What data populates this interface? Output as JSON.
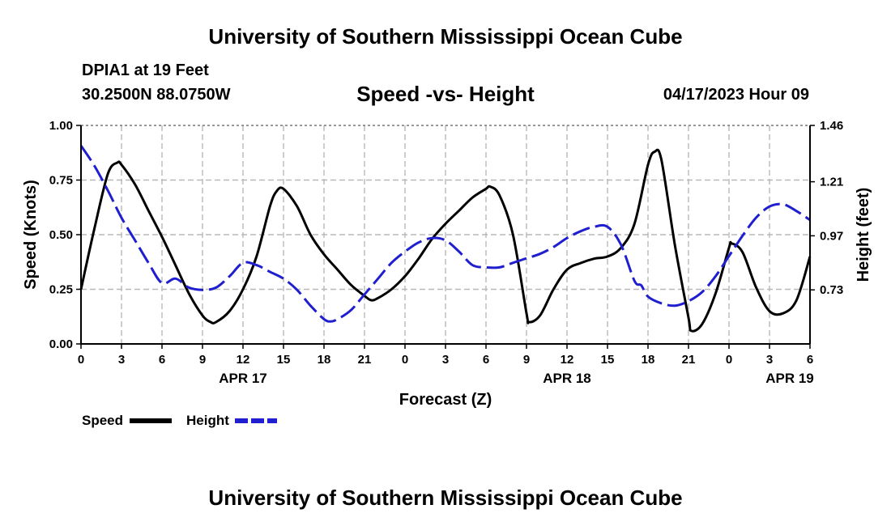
{
  "header": {
    "title": "University of Southern Mississippi Ocean Cube",
    "station": "DPIA1 at 19 Feet",
    "coordinates": "30.2500N  88.0750W",
    "datetime": "04/17/2023 Hour 09"
  },
  "footer": {
    "title": "University of Southern Mississippi Ocean Cube"
  },
  "chart_data": {
    "type": "line",
    "title": "Speed -vs- Height",
    "xlabel": "Forecast (Z)",
    "ylabel": "Speed (Knots)",
    "y2label": "Height (feet)",
    "x_range": [
      0,
      54
    ],
    "x_ticks": [
      0,
      3,
      6,
      9,
      12,
      15,
      18,
      21,
      24,
      27,
      30,
      33,
      36,
      39,
      42,
      45,
      48,
      51,
      54
    ],
    "x_tick_labels": [
      "0",
      "3",
      "6",
      "9",
      "12",
      "15",
      "18",
      "21",
      "0",
      "3",
      "6",
      "9",
      "12",
      "15",
      "18",
      "21",
      "0",
      "3",
      "6"
    ],
    "date_labels": [
      {
        "x": 12,
        "label": "APR 17"
      },
      {
        "x": 36,
        "label": "APR 18"
      },
      {
        "x": 52.5,
        "label": "APR 19"
      }
    ],
    "ylim": [
      0,
      1
    ],
    "y_ticks": [
      0,
      0.25,
      0.5,
      0.75,
      1
    ],
    "y_tick_labels": [
      "0.00",
      "0.25",
      "0.50",
      "0.75",
      "1.00"
    ],
    "y2lim": [
      0.49,
      1.46
    ],
    "y2_ticks": [
      0.73,
      0.97,
      1.21,
      1.46
    ],
    "y2_tick_labels": [
      "0.73",
      "0.97",
      "1.21",
      "1.46"
    ],
    "grid": true,
    "legend_position": "bottom-left",
    "series": [
      {
        "name": "Speed",
        "axis": "left",
        "color": "#000000",
        "style": "solid",
        "x": [
          0,
          1,
          2,
          2.7,
          3,
          4,
          5,
          6,
          7,
          8,
          9,
          9.6,
          10,
          11,
          12,
          13,
          14,
          14.5,
          15,
          16,
          17,
          18,
          19,
          20,
          21,
          21.5,
          22,
          23,
          24,
          25,
          26,
          27,
          28,
          29,
          30,
          30.3,
          31,
          32,
          33,
          33.2,
          34,
          35,
          36,
          37,
          38,
          39,
          40,
          41,
          42,
          42.5,
          43,
          44,
          45,
          45.2,
          46,
          47,
          48,
          48.2,
          49,
          50,
          51,
          52,
          53,
          54
        ],
        "values": [
          0.25,
          0.53,
          0.78,
          0.83,
          0.82,
          0.73,
          0.61,
          0.49,
          0.36,
          0.23,
          0.13,
          0.1,
          0.1,
          0.15,
          0.25,
          0.4,
          0.63,
          0.7,
          0.71,
          0.63,
          0.5,
          0.41,
          0.34,
          0.27,
          0.22,
          0.2,
          0.21,
          0.25,
          0.31,
          0.39,
          0.48,
          0.55,
          0.61,
          0.67,
          0.71,
          0.72,
          0.68,
          0.5,
          0.14,
          0.1,
          0.13,
          0.25,
          0.34,
          0.37,
          0.39,
          0.4,
          0.44,
          0.55,
          0.82,
          0.88,
          0.84,
          0.45,
          0.12,
          0.06,
          0.09,
          0.23,
          0.44,
          0.46,
          0.42,
          0.26,
          0.15,
          0.14,
          0.2,
          0.4
        ]
      },
      {
        "name": "Height",
        "axis": "right",
        "color": "#1f1fd0",
        "style": "dashed",
        "x": [
          0,
          1,
          2,
          3,
          4,
          5,
          6,
          7,
          8,
          9,
          10,
          11,
          12,
          13,
          14,
          15,
          16,
          17,
          18,
          18.5,
          19,
          20,
          21,
          22,
          23,
          24,
          25,
          26,
          27,
          28,
          29,
          30,
          31,
          32,
          33,
          34,
          35,
          36,
          37,
          38,
          39,
          40,
          41,
          41.5,
          42,
          43,
          44,
          45,
          46,
          47,
          48,
          49,
          50,
          51,
          52,
          53,
          54
        ],
        "values": [
          1.37,
          1.28,
          1.17,
          1.05,
          0.95,
          0.85,
          0.76,
          0.78,
          0.74,
          0.73,
          0.74,
          0.79,
          0.85,
          0.84,
          0.81,
          0.78,
          0.73,
          0.66,
          0.6,
          0.59,
          0.6,
          0.64,
          0.71,
          0.78,
          0.85,
          0.9,
          0.94,
          0.96,
          0.95,
          0.9,
          0.84,
          0.83,
          0.83,
          0.85,
          0.87,
          0.89,
          0.92,
          0.96,
          0.99,
          1.01,
          1.01,
          0.93,
          0.77,
          0.75,
          0.7,
          0.67,
          0.66,
          0.68,
          0.72,
          0.79,
          0.88,
          0.97,
          1.05,
          1.1,
          1.11,
          1.08,
          1.04
        ]
      }
    ]
  }
}
